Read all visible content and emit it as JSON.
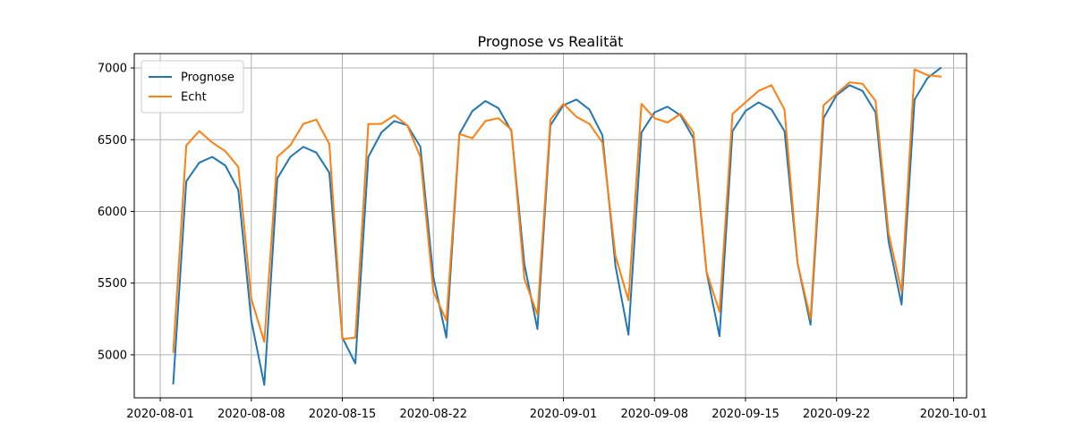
{
  "chart_data": {
    "type": "line",
    "title": "Prognose vs Realität",
    "xlabel": "",
    "ylabel": "",
    "x_start": "2020-07-30",
    "x_end": "2020-10-02",
    "xticks": [
      {
        "date": "2020-08-01",
        "label": "2020-08-01"
      },
      {
        "date": "2020-08-08",
        "label": "2020-08-08"
      },
      {
        "date": "2020-08-15",
        "label": "2020-08-15"
      },
      {
        "date": "2020-08-22",
        "label": "2020-08-22"
      },
      {
        "date": "2020-09-01",
        "label": "2020-09-01"
      },
      {
        "date": "2020-09-08",
        "label": "2020-09-08"
      },
      {
        "date": "2020-09-15",
        "label": "2020-09-15"
      },
      {
        "date": "2020-09-22",
        "label": "2020-09-22"
      },
      {
        "date": "2020-10-01",
        "label": "2020-10-01"
      }
    ],
    "yticks": [
      5000,
      5500,
      6000,
      6500,
      7000
    ],
    "ylim": [
      4700,
      7100
    ],
    "grid": true,
    "legend_position": "top-left",
    "x": [
      "2020-08-02",
      "2020-08-03",
      "2020-08-04",
      "2020-08-05",
      "2020-08-06",
      "2020-08-07",
      "2020-08-08",
      "2020-08-09",
      "2020-08-10",
      "2020-08-11",
      "2020-08-12",
      "2020-08-13",
      "2020-08-14",
      "2020-08-15",
      "2020-08-16",
      "2020-08-17",
      "2020-08-18",
      "2020-08-19",
      "2020-08-20",
      "2020-08-21",
      "2020-08-22",
      "2020-08-23",
      "2020-08-24",
      "2020-08-25",
      "2020-08-26",
      "2020-08-27",
      "2020-08-28",
      "2020-08-29",
      "2020-08-30",
      "2020-08-31",
      "2020-09-01",
      "2020-09-02",
      "2020-09-03",
      "2020-09-04",
      "2020-09-05",
      "2020-09-06",
      "2020-09-07",
      "2020-09-08",
      "2020-09-09",
      "2020-09-10",
      "2020-09-11",
      "2020-09-12",
      "2020-09-13",
      "2020-09-14",
      "2020-09-15",
      "2020-09-16",
      "2020-09-17",
      "2020-09-18",
      "2020-09-19",
      "2020-09-20",
      "2020-09-21",
      "2020-09-22",
      "2020-09-23",
      "2020-09-24",
      "2020-09-25",
      "2020-09-26",
      "2020-09-27",
      "2020-09-28",
      "2020-09-29",
      "2020-09-30"
    ],
    "series": [
      {
        "name": "Prognose",
        "color": "#1f77b4",
        "values": [
          4800,
          6210,
          6340,
          6380,
          6320,
          6150,
          5240,
          4790,
          6230,
          6380,
          6450,
          6410,
          6270,
          5120,
          4940,
          6380,
          6550,
          6630,
          6600,
          6450,
          5540,
          5120,
          6540,
          6700,
          6770,
          6720,
          6560,
          5630,
          5180,
          6600,
          6740,
          6780,
          6710,
          6530,
          5620,
          5140,
          6550,
          6690,
          6730,
          6670,
          6510,
          5580,
          5130,
          6560,
          6700,
          6760,
          6710,
          6560,
          5640,
          5210,
          6650,
          6810,
          6880,
          6840,
          6690,
          5790,
          5350,
          6780,
          6930,
          7000
        ]
      },
      {
        "name": "Echt",
        "color": "#ff7f0e",
        "values": [
          5020,
          6460,
          6560,
          6480,
          6420,
          6310,
          5390,
          5090,
          6380,
          6460,
          6610,
          6640,
          6470,
          5110,
          5120,
          6610,
          6610,
          6670,
          6600,
          6380,
          5440,
          5240,
          6540,
          6510,
          6630,
          6650,
          6570,
          5530,
          5280,
          6640,
          6750,
          6660,
          6610,
          6480,
          5690,
          5380,
          6750,
          6650,
          6620,
          6680,
          6550,
          5580,
          5300,
          6680,
          6760,
          6840,
          6880,
          6710,
          5640,
          5250,
          6740,
          6820,
          6900,
          6890,
          6770,
          5850,
          5440,
          6990,
          6950,
          6940
        ]
      }
    ]
  }
}
